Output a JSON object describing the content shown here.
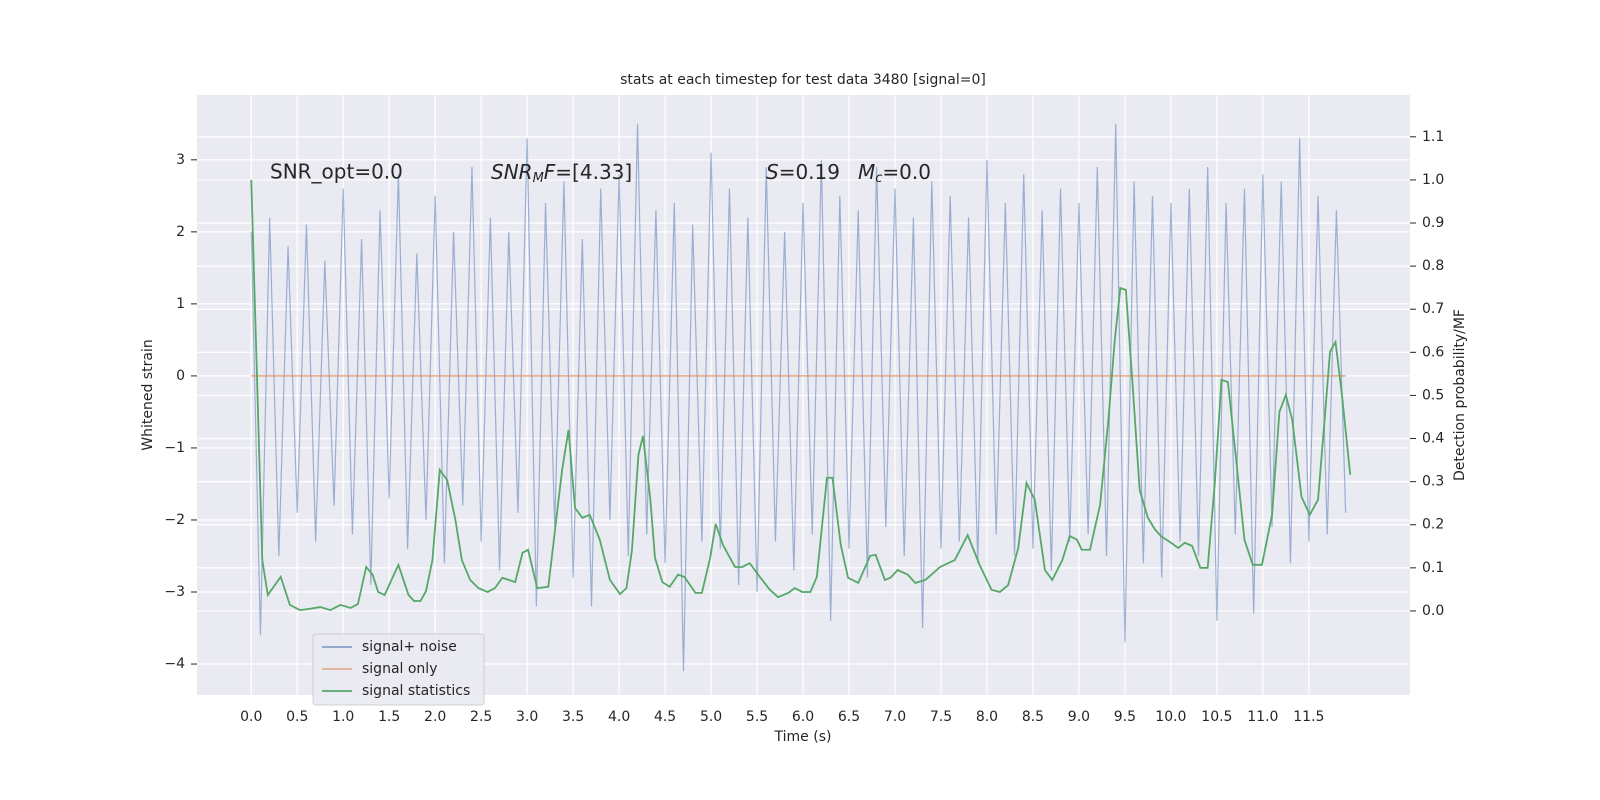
{
  "chart_data": {
    "type": "line",
    "title": "stats at each timestep for test data 3480 [signal=0]",
    "xlabel": "Time (s)",
    "ylabel": "Whitened strain",
    "y2label": "Detection probability/MF",
    "annotations": {
      "snr_opt": "SNR_opt=0.0",
      "snr_mf": [
        "SNR",
        "M",
        "F",
        "=[4.33]"
      ],
      "stats": [
        "S",
        "=0.19",
        "M",
        "c",
        "=0.0"
      ]
    },
    "xlim": [
      -0.59,
      12.6
    ],
    "ylim": [
      -4.43,
      3.9
    ],
    "y2lim": [
      -0.195,
      1.197
    ],
    "xticks": [
      {
        "value": 0,
        "label": "0.0"
      },
      0.5,
      {
        "value": 1,
        "label": "1.0"
      },
      1.5,
      {
        "value": 2,
        "label": "2.0"
      },
      2.5,
      {
        "value": 3,
        "label": "3.0"
      },
      3.5,
      {
        "value": 4,
        "label": "4.0"
      },
      4.5,
      {
        "value": 5,
        "label": "5.0"
      },
      5.5,
      {
        "value": 6,
        "label": "6.0"
      },
      6.5,
      {
        "value": 7,
        "label": "7.0"
      },
      7.5,
      {
        "value": 8,
        "label": "8.0"
      },
      8.5,
      {
        "value": 9,
        "label": "9.0"
      },
      9.5,
      {
        "value": 10,
        "label": "10.0"
      },
      10.5,
      {
        "value": 11,
        "label": "11.0"
      },
      11.5
    ],
    "yticks": [
      {
        "value": -4,
        "label": "−4"
      },
      {
        "value": -3,
        "label": "−3"
      },
      {
        "value": -2,
        "label": "−2"
      },
      {
        "value": -1,
        "label": "−1"
      },
      0,
      1,
      2,
      3
    ],
    "y2ticks": [
      {
        "value": 0,
        "label": "0.0"
      },
      0.1,
      0.2,
      0.3,
      0.4,
      0.5,
      0.6,
      0.7,
      0.8,
      0.9,
      {
        "value": 1,
        "label": "1.0"
      },
      1.1
    ],
    "grid": true,
    "legend": "lower left",
    "series": [
      {
        "name": "signal+ noise",
        "color": "#4c72b0",
        "x": [
          0,
          0.1,
          0.2,
          0.3,
          0.4,
          0.5,
          0.6,
          0.7,
          0.8,
          0.9,
          1,
          1.1,
          1.2,
          1.3,
          1.4,
          1.5,
          1.6,
          1.7,
          1.8,
          1.9,
          2,
          2.1,
          2.2,
          2.3,
          2.4,
          2.5,
          2.6,
          2.7,
          2.8,
          2.9,
          3,
          3.1,
          3.2,
          3.3,
          3.4,
          3.5,
          3.6,
          3.7,
          3.8,
          3.9,
          4,
          4.1,
          4.2,
          4.3,
          4.4,
          4.5,
          4.6,
          4.7,
          4.8,
          4.9,
          5,
          5.1,
          5.2,
          5.3,
          5.4,
          5.5,
          5.6,
          5.7,
          5.8,
          5.9,
          6,
          6.1,
          6.2,
          6.3,
          6.4,
          6.5,
          6.6,
          6.7,
          6.8,
          6.9,
          7,
          7.1,
          7.2,
          7.3,
          7.4,
          7.5,
          7.6,
          7.7,
          7.8,
          7.9,
          8,
          8.1,
          8.2,
          8.3,
          8.4,
          8.5,
          8.6,
          8.7,
          8.8,
          8.9,
          9,
          9.1,
          9.2,
          9.3,
          9.4,
          9.5,
          9.6,
          9.7,
          9.8,
          9.9,
          10,
          10.1,
          10.2,
          10.3,
          10.4,
          10.5,
          10.6,
          10.7,
          10.8,
          10.9,
          11,
          11.1,
          11.2,
          11.3,
          11.4,
          11.5,
          11.6,
          11.7,
          11.8,
          11.9
        ],
        "values": [
          2.0,
          -3.6,
          2.2,
          -2.5,
          1.8,
          -1.9,
          2.1,
          -2.3,
          1.6,
          -1.8,
          2.6,
          -2.2,
          1.9,
          -2.9,
          2.3,
          -1.7,
          2.8,
          -2.4,
          1.7,
          -2.0,
          2.5,
          -2.6,
          2.0,
          -1.8,
          2.9,
          -2.3,
          2.2,
          -2.7,
          2.0,
          -1.9,
          3.3,
          -3.2,
          2.4,
          -2.1,
          2.7,
          -2.8,
          1.9,
          -3.2,
          2.6,
          -2.0,
          2.8,
          -2.5,
          3.5,
          -2.2,
          2.3,
          -2.6,
          2.4,
          -4.1,
          2.1,
          -2.3,
          3.1,
          -2.4,
          2.6,
          -2.9,
          2.2,
          -3.0,
          2.9,
          -2.3,
          2.0,
          -2.7,
          2.4,
          -2.2,
          3.0,
          -3.4,
          2.5,
          -2.4,
          2.3,
          -2.8,
          2.9,
          -2.1,
          2.6,
          -2.5,
          2.2,
          -3.5,
          2.7,
          -2.4,
          2.5,
          -2.3,
          2.2,
          -2.6,
          3.0,
          -2.2,
          2.4,
          -2.5,
          2.8,
          -2.4,
          2.3,
          -2.7,
          2.6,
          -2.3,
          2.4,
          -2.2,
          2.9,
          -2.5,
          3.5,
          -3.7,
          2.7,
          -2.6,
          2.5,
          -2.8,
          2.4,
          -2.3,
          2.6,
          -2.5,
          2.9,
          -3.4,
          2.4,
          -2.2,
          2.6,
          -3.3,
          2.8,
          -2.1,
          2.7,
          -2.6,
          3.3,
          -2.3,
          2.5,
          -2.2,
          2.3,
          -1.9
        ]
      },
      {
        "name": "signal only",
        "color": "#dd8452",
        "x": [
          0,
          11.9
        ],
        "values": [
          0,
          0
        ]
      },
      {
        "name": "signal statistics",
        "color": "#55a868",
        "axis": "y2",
        "x": [
          0,
          0.12,
          0.18,
          0.32,
          0.42,
          0.53,
          0.64,
          0.75,
          0.86,
          0.97,
          1.08,
          1.16,
          1.25,
          1.32,
          1.38,
          1.45,
          1.6,
          1.71,
          1.77,
          1.84,
          1.9,
          1.97,
          2.05,
          2.13,
          2.22,
          2.29,
          2.38,
          2.47,
          2.57,
          2.65,
          2.73,
          2.87,
          2.95,
          3.01,
          3.11,
          3.23,
          3.38,
          3.45,
          3.52,
          3.6,
          3.68,
          3.79,
          3.9,
          4.01,
          4.08,
          4.14,
          4.21,
          4.26,
          4.34,
          4.39,
          4.47,
          4.55,
          4.64,
          4.71,
          4.83,
          4.9,
          4.99,
          5.05,
          5.13,
          5.26,
          5.34,
          5.42,
          5.53,
          5.64,
          5.73,
          5.84,
          5.91,
          5.99,
          6.08,
          6.15,
          6.26,
          6.32,
          6.41,
          6.49,
          6.6,
          6.73,
          6.79,
          6.89,
          6.95,
          7.03,
          7.14,
          7.22,
          7.33,
          7.49,
          7.65,
          7.79,
          7.92,
          8.05,
          8.14,
          8.23,
          8.34,
          8.43,
          8.52,
          8.63,
          8.71,
          8.82,
          8.9,
          8.98,
          9.03,
          9.12,
          9.23,
          9.32,
          9.39,
          9.45,
          9.51,
          9.58,
          9.66,
          9.75,
          9.83,
          9.9,
          9.99,
          10.08,
          10.15,
          10.23,
          10.32,
          10.4,
          10.48,
          10.55,
          10.62,
          10.71,
          10.8,
          10.89,
          10.99,
          11.1,
          11.18,
          11.25,
          11.32,
          11.42,
          11.51,
          11.6,
          11.68,
          11.73,
          11.79,
          11.86,
          11.95
        ],
        "values": [
          1.0,
          0.118,
          0.037,
          0.079,
          0.014,
          0.002,
          0.005,
          0.009,
          0.002,
          0.014,
          0.007,
          0.016,
          0.102,
          0.084,
          0.044,
          0.037,
          0.107,
          0.037,
          0.023,
          0.023,
          0.046,
          0.118,
          0.327,
          0.304,
          0.211,
          0.118,
          0.072,
          0.053,
          0.044,
          0.053,
          0.077,
          0.067,
          0.135,
          0.142,
          0.053,
          0.056,
          0.327,
          0.42,
          0.239,
          0.216,
          0.223,
          0.165,
          0.072,
          0.039,
          0.053,
          0.142,
          0.362,
          0.406,
          0.258,
          0.123,
          0.067,
          0.056,
          0.084,
          0.079,
          0.042,
          0.042,
          0.123,
          0.202,
          0.153,
          0.102,
          0.102,
          0.111,
          0.079,
          0.049,
          0.032,
          0.042,
          0.053,
          0.044,
          0.044,
          0.079,
          0.309,
          0.309,
          0.153,
          0.077,
          0.065,
          0.128,
          0.13,
          0.072,
          0.077,
          0.095,
          0.084,
          0.065,
          0.072,
          0.102,
          0.118,
          0.176,
          0.107,
          0.049,
          0.044,
          0.06,
          0.146,
          0.297,
          0.258,
          0.095,
          0.072,
          0.118,
          0.174,
          0.165,
          0.142,
          0.142,
          0.246,
          0.443,
          0.629,
          0.749,
          0.745,
          0.536,
          0.281,
          0.216,
          0.188,
          0.172,
          0.16,
          0.146,
          0.158,
          0.151,
          0.1,
          0.1,
          0.304,
          0.536,
          0.531,
          0.35,
          0.165,
          0.107,
          0.107,
          0.223,
          0.462,
          0.501,
          0.443,
          0.265,
          0.223,
          0.258,
          0.466,
          0.601,
          0.624,
          0.501,
          0.316
        ]
      }
    ]
  }
}
